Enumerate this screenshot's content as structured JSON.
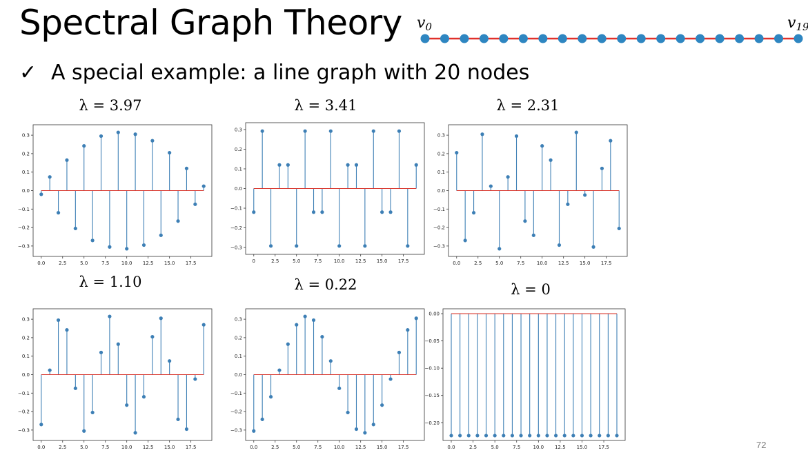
{
  "slide": {
    "title": "Spectral Graph Theory",
    "bullet_icon": "check-mark-icon",
    "bullet": "A special example: a line graph with 20 nodes",
    "page_number": "72"
  },
  "line_graph": {
    "start_label": "v",
    "start_sub": "0",
    "end_label": "v",
    "end_sub": "19",
    "node_count": 20,
    "node_color": "#2e86c1",
    "edge_color": "#e0302a"
  },
  "colors": {
    "stem": "#3d7fb5",
    "marker": "#3d7fb5",
    "baseline": "#d9382f"
  },
  "chart_data": [
    {
      "type": "stem",
      "label": "λ = 3.97",
      "x": [
        0,
        1,
        2,
        3,
        4,
        5,
        6,
        7,
        8,
        9,
        10,
        11,
        12,
        13,
        14,
        15,
        16,
        17,
        18,
        19
      ],
      "values": [
        -0.02,
        0.074,
        -0.12,
        0.165,
        -0.205,
        0.242,
        -0.27,
        0.295,
        -0.305,
        0.315,
        -0.315,
        0.305,
        -0.295,
        0.27,
        -0.242,
        0.205,
        -0.165,
        0.12,
        -0.074,
        0.024
      ],
      "ylim": [
        -0.33,
        0.33
      ],
      "xticks": [
        "0.0",
        "2.5",
        "5.0",
        "7.5",
        "10.0",
        "12.5",
        "15.0",
        "17.5"
      ],
      "yticks": [
        "0.3",
        "0.2",
        "0.1",
        "0.0",
        "−0.1",
        "−0.2",
        "−0.3"
      ],
      "ytick_values": [
        0.3,
        0.2,
        0.1,
        0,
        -0.1,
        -0.2,
        -0.3
      ]
    },
    {
      "type": "stem",
      "label": "λ = 3.41",
      "x": [
        0,
        1,
        2,
        3,
        4,
        5,
        6,
        7,
        8,
        9,
        10,
        11,
        12,
        13,
        14,
        15,
        16,
        17,
        18,
        19
      ],
      "values": [
        -0.12,
        0.292,
        -0.292,
        0.12,
        0.12,
        -0.292,
        0.292,
        -0.12,
        -0.12,
        0.292,
        -0.292,
        0.12,
        0.12,
        -0.292,
        0.292,
        -0.12,
        -0.12,
        0.292,
        -0.292,
        0.12
      ],
      "ylim": [
        -0.31,
        0.31
      ],
      "xticks": [
        "0",
        "2.5",
        "5.0",
        "7.5",
        "10.0",
        "12.5",
        "15.0",
        "17.5"
      ],
      "yticks": [
        "0.3",
        "0.2",
        "0.1",
        "0.0",
        "−0.1",
        "−0.2",
        "−0.3"
      ],
      "ytick_values": [
        0.3,
        0.2,
        0.1,
        0,
        -0.1,
        -0.2,
        -0.3
      ]
    },
    {
      "type": "stem",
      "label": "λ = 2.31",
      "x": [
        0,
        1,
        2,
        3,
        4,
        5,
        6,
        7,
        8,
        9,
        10,
        11,
        12,
        13,
        14,
        15,
        16,
        17,
        18,
        19
      ],
      "values": [
        0.205,
        -0.27,
        -0.12,
        0.305,
        0.024,
        -0.315,
        0.074,
        0.295,
        -0.165,
        -0.242,
        0.242,
        0.165,
        -0.295,
        -0.074,
        0.315,
        -0.024,
        -0.305,
        0.12,
        0.27,
        -0.205
      ],
      "ylim": [
        -0.33,
        0.33
      ],
      "xticks": [
        "0.0",
        "2.5",
        "5.0",
        "7.5",
        "10.0",
        "12.5",
        "15.0",
        "17.5"
      ],
      "yticks": [
        "0.3",
        "0.2",
        "0.1",
        "0.0",
        "−0.1",
        "−0.2",
        "−0.3"
      ],
      "ytick_values": [
        0.3,
        0.2,
        0.1,
        0,
        -0.1,
        -0.2,
        -0.3
      ]
    },
    {
      "type": "stem",
      "label": "λ = 1.10",
      "x": [
        0,
        1,
        2,
        3,
        4,
        5,
        6,
        7,
        8,
        9,
        10,
        11,
        12,
        13,
        14,
        15,
        16,
        17,
        18,
        19
      ],
      "values": [
        -0.27,
        0.024,
        0.295,
        0.242,
        -0.074,
        -0.305,
        -0.205,
        0.12,
        0.315,
        0.165,
        -0.165,
        -0.315,
        -0.12,
        0.205,
        0.305,
        0.074,
        -0.242,
        -0.295,
        -0.024,
        0.27
      ],
      "ylim": [
        -0.33,
        0.33
      ],
      "xticks": [
        "0.0",
        "2.5",
        "5.0",
        "7.5",
        "10.0",
        "12.5",
        "15.0",
        "17.5"
      ],
      "yticks": [
        "0.3",
        "0.2",
        "0.1",
        "0.0",
        "−0.1",
        "−0.2",
        "−0.3"
      ],
      "ytick_values": [
        0.3,
        0.2,
        0.1,
        0,
        -0.1,
        -0.2,
        -0.3
      ]
    },
    {
      "type": "stem",
      "label": "λ = 0.22",
      "x": [
        0,
        1,
        2,
        3,
        4,
        5,
        6,
        7,
        8,
        9,
        10,
        11,
        12,
        13,
        14,
        15,
        16,
        17,
        18,
        19
      ],
      "values": [
        -0.305,
        -0.242,
        -0.12,
        0.024,
        0.165,
        0.27,
        0.315,
        0.295,
        0.205,
        0.074,
        -0.074,
        -0.205,
        -0.295,
        -0.315,
        -0.27,
        -0.165,
        -0.024,
        0.12,
        0.242,
        0.305
      ],
      "ylim": [
        -0.33,
        0.33
      ],
      "xticks": [
        "0.0",
        "2.5",
        "5.0",
        "7.5",
        "10.0",
        "12.5",
        "15.0",
        "17.5"
      ],
      "yticks": [
        "0.3",
        "0.2",
        "0.1",
        "0.0",
        "−0.1",
        "−0.2",
        "−0.3"
      ],
      "ytick_values": [
        0.3,
        0.2,
        0.1,
        0,
        -0.1,
        -0.2,
        -0.3
      ]
    },
    {
      "type": "stem",
      "label": "λ = 0",
      "x": [
        0,
        1,
        2,
        3,
        4,
        5,
        6,
        7,
        8,
        9,
        10,
        11,
        12,
        13,
        14,
        15,
        16,
        17,
        18,
        19
      ],
      "values": [
        -0.2236,
        -0.2236,
        -0.2236,
        -0.2236,
        -0.2236,
        -0.2236,
        -0.2236,
        -0.2236,
        -0.2236,
        -0.2236,
        -0.2236,
        -0.2236,
        -0.2236,
        -0.2236,
        -0.2236,
        -0.2236,
        -0.2236,
        -0.2236,
        -0.2236,
        -0.2236
      ],
      "ylim": [
        -0.2236,
        0.0
      ],
      "xticks": [
        "0.0",
        "2.5",
        "5.0",
        "7.5",
        "10.0",
        "12.5",
        "15.0",
        "17.5"
      ],
      "yticks": [
        "0.00",
        "−0.05",
        "−0.10",
        "−0.15",
        "−0.20"
      ],
      "ytick_values": [
        0,
        -0.05,
        -0.1,
        -0.15,
        -0.2
      ]
    }
  ]
}
